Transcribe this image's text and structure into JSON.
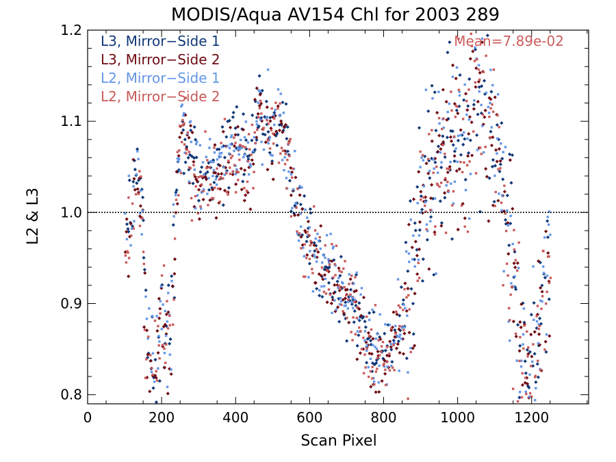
{
  "chart_data": {
    "type": "scatter",
    "title": "MODIS/Aqua AV154 Chl for 2003 289",
    "xlabel": "Scan Pixel",
    "ylabel": "L2 & L3",
    "xlim": [
      0,
      1354
    ],
    "ylim": [
      0.79,
      1.2
    ],
    "xticks": [
      0,
      200,
      400,
      600,
      800,
      1000,
      1200
    ],
    "yticks": [
      0.8,
      0.9,
      1.0,
      1.1,
      1.2
    ],
    "ytick_labels": [
      "0.8",
      "0.9",
      "1.0",
      "1.1",
      "1.2"
    ],
    "reference_line": 1.0,
    "annotation": "Mean=7.89e-02",
    "annotation_color": "#cd5c5c",
    "grid": false,
    "legend_placement": "top-left",
    "series": [
      {
        "name": "L3, Mirror−Side 1",
        "color": "#103878",
        "marker": "diamond"
      },
      {
        "name": "L3, Mirror−Side 2",
        "color": "#6e0a12",
        "marker": "diamond"
      },
      {
        "name": "L2, Mirror−Side 1",
        "color": "#6496e6",
        "marker": "square"
      },
      {
        "name": "L2, Mirror−Side 2",
        "color": "#c85a5a",
        "marker": "square"
      }
    ],
    "trend": {
      "x": [
        100,
        120,
        135,
        150,
        160,
        180,
        200,
        215,
        230,
        240,
        255,
        270,
        300,
        330,
        360,
        390,
        420,
        440,
        460,
        480,
        500,
        520,
        540,
        555,
        570,
        590,
        610,
        630,
        660,
        690,
        720,
        750,
        780,
        800,
        820,
        850,
        880,
        900,
        930,
        960,
        1000,
        1040,
        1070,
        1090,
        1110,
        1130,
        1150,
        1170,
        1190,
        1210,
        1230,
        1250
      ],
      "y": [
        0.96,
        1.01,
        1.04,
        0.98,
        0.83,
        0.82,
        0.91,
        0.86,
        0.9,
        1.03,
        1.1,
        1.07,
        1.04,
        1.04,
        1.05,
        1.07,
        1.06,
        1.06,
        1.11,
        1.09,
        1.09,
        1.1,
        1.07,
        1.03,
        1.0,
        0.97,
        0.96,
        0.95,
        0.93,
        0.91,
        0.9,
        0.86,
        0.84,
        0.84,
        0.86,
        0.88,
        0.93,
        1.01,
        1.04,
        1.06,
        1.08,
        1.11,
        1.14,
        1.11,
        1.06,
        1.0,
        0.93,
        0.85,
        0.82,
        0.84,
        0.9,
        0.95
      ]
    }
  }
}
